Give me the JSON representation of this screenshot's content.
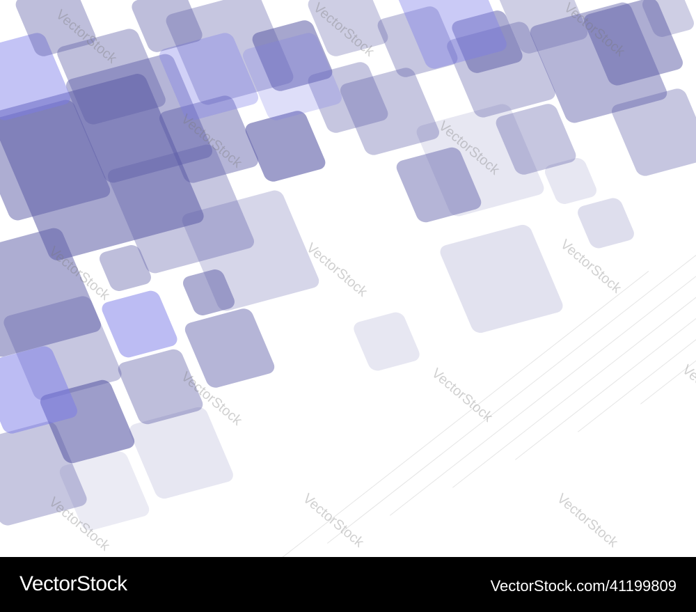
{
  "image": {
    "watermark_text": "VectorStock",
    "square_color": "#5c5ca6",
    "accent_color": "#7a7ae8"
  },
  "footer": {
    "logo": "VectorStock",
    "reference": "VectorStock.com/41199809"
  }
}
